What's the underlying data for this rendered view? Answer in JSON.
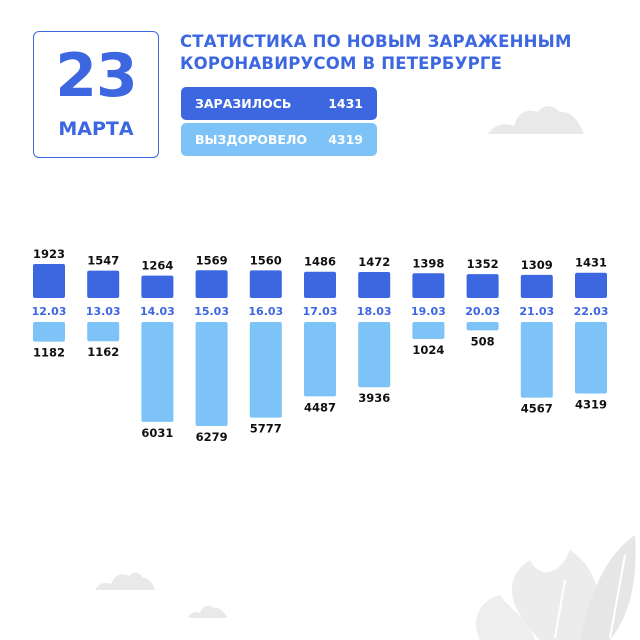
{
  "date": {
    "day": "23",
    "month": "МАРТА"
  },
  "title": [
    "СТАТИСТИКА ПО НОВЫМ ЗАРАЖЕННЫМ",
    "КОРОНАВИРУСОМ В ПЕТЕРБУРГЕ"
  ],
  "legend": {
    "infected": {
      "label": "ЗАРАЗИЛОСЬ",
      "value": "1431"
    },
    "recovered": {
      "label": "ВЫЗДОРОВЕЛО",
      "value": "4319"
    }
  },
  "colors": {
    "accent": "#3d67e0",
    "light": "#7dc3f7",
    "cloud": "#e9e9e9",
    "leaf": "#ececec"
  },
  "chart_data": {
    "type": "bar",
    "categories": [
      "12.03",
      "13.03",
      "14.03",
      "15.03",
      "16.03",
      "17.03",
      "18.03",
      "19.03",
      "20.03",
      "21.03",
      "22.03"
    ],
    "series": [
      {
        "name": "ЗАРАЗИЛОСЬ",
        "values": [
          1923,
          1547,
          1264,
          1569,
          1560,
          1486,
          1472,
          1398,
          1352,
          1309,
          1431
        ]
      },
      {
        "name": "ВЫЗДОРОВЕЛО",
        "values": [
          1182,
          1162,
          6031,
          6279,
          5777,
          4487,
          3936,
          1024,
          508,
          4567,
          4319
        ]
      }
    ]
  }
}
